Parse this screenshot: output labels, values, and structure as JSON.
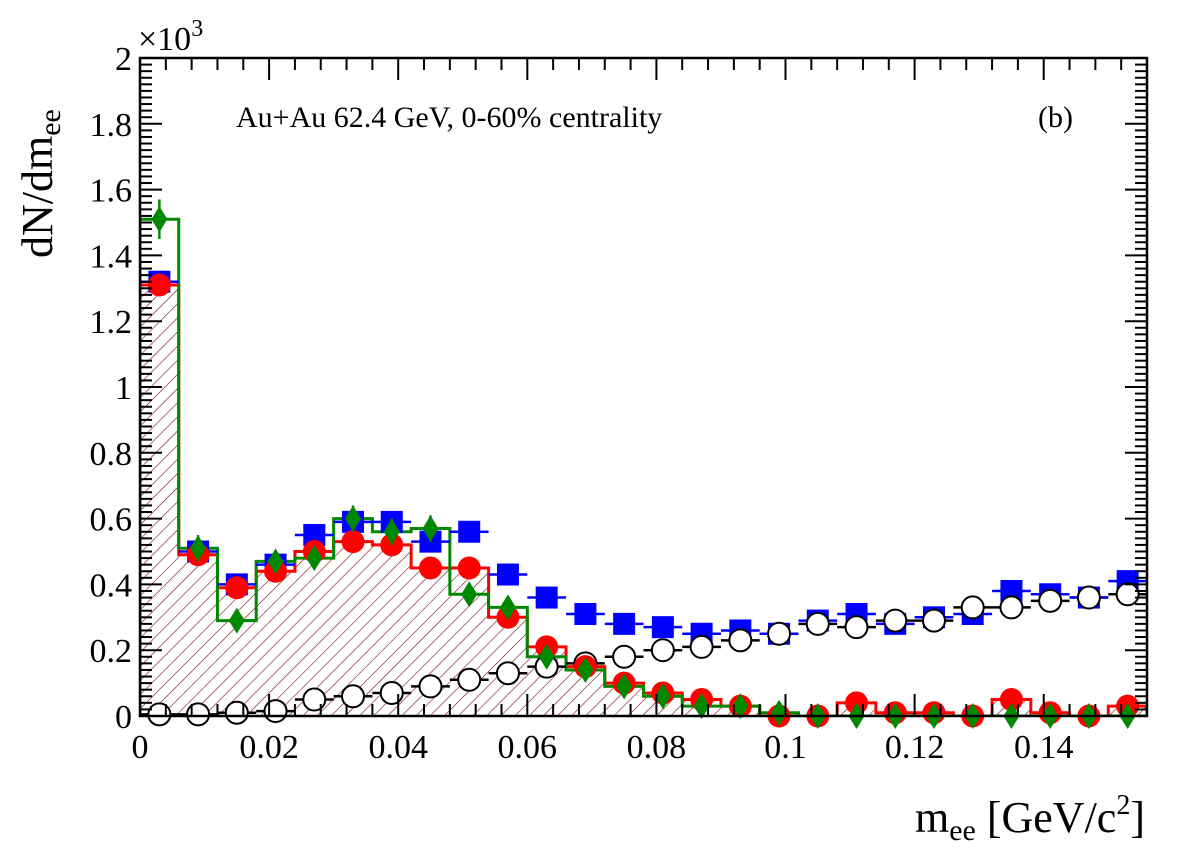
{
  "chart_data": {
    "type": "scatter",
    "annotation": "Au+Au 62.4 GeV, 0-60% centrality",
    "panel_label": "(b)",
    "ylabel": "dN/dm",
    "ylabel_sub": "ee",
    "xlabel": "m",
    "xlabel_sub": "ee",
    "xlabel_unit": " [GeV/c",
    "xlabel_unit_sup": "2",
    "xlabel_unit_end": "]",
    "multiplier_base": "×10",
    "multiplier_exp": "3",
    "xlim": [
      0,
      0.156
    ],
    "ylim": [
      0,
      2
    ],
    "x_ticks": [
      "0",
      "0.02",
      "0.04",
      "0.06",
      "0.08",
      "0.1",
      "0.12",
      "0.14"
    ],
    "x_tick_values": [
      0,
      0.02,
      0.04,
      0.06,
      0.08,
      0.1,
      0.12,
      0.14
    ],
    "y_ticks": [
      "0",
      "0.2",
      "0.4",
      "0.6",
      "0.8",
      "1",
      "1.2",
      "1.4",
      "1.6",
      "1.8",
      "2"
    ],
    "y_tick_values": [
      0,
      0.2,
      0.4,
      0.6,
      0.8,
      1.0,
      1.2,
      1.4,
      1.6,
      1.8,
      2.0
    ],
    "bin_edges": [
      0,
      0.006,
      0.012,
      0.018,
      0.024,
      0.03,
      0.036,
      0.042,
      0.048,
      0.054,
      0.06,
      0.066,
      0.072,
      0.078,
      0.084,
      0.09,
      0.096,
      0.102,
      0.108,
      0.114,
      0.12,
      0.126,
      0.132,
      0.138,
      0.144,
      0.15,
      0.156
    ],
    "x": [
      0.003,
      0.009,
      0.015,
      0.021,
      0.027,
      0.033,
      0.039,
      0.045,
      0.051,
      0.057,
      0.063,
      0.069,
      0.075,
      0.081,
      0.087,
      0.093,
      0.099,
      0.105,
      0.111,
      0.117,
      0.123,
      0.129,
      0.135,
      0.141,
      0.147,
      0.153
    ],
    "series": [
      {
        "marker": "square",
        "color": "#0000ff",
        "values": [
          1.32,
          0.5,
          0.4,
          0.46,
          0.55,
          0.59,
          0.59,
          0.53,
          0.56,
          0.43,
          0.36,
          0.31,
          0.28,
          0.27,
          0.25,
          0.26,
          0.25,
          0.29,
          0.31,
          0.28,
          0.3,
          0.31,
          0.38,
          0.37,
          0.36,
          0.41
        ]
      },
      {
        "marker": "circle",
        "color": "#ff0000",
        "style": "hatched-histogram",
        "values": [
          1.31,
          0.49,
          0.39,
          0.44,
          0.5,
          0.53,
          0.52,
          0.45,
          0.45,
          0.3,
          0.21,
          0.15,
          0.1,
          0.07,
          0.05,
          0.03,
          0.0,
          0.0,
          0.04,
          0.01,
          0.01,
          0.0,
          0.05,
          0.01,
          0.0,
          0.03
        ]
      },
      {
        "marker": "diamond",
        "color": "#008800",
        "style": "histogram",
        "values": [
          1.51,
          0.51,
          0.29,
          0.47,
          0.48,
          0.6,
          0.56,
          0.57,
          0.37,
          0.33,
          0.18,
          0.14,
          0.09,
          0.06,
          0.03,
          0.03,
          0.01,
          0.0,
          0.0,
          0.0,
          0.0,
          0.0,
          0.0,
          0.0,
          0.0,
          0.0
        ],
        "errors": [
          0.06,
          0.04,
          0.03,
          0.03,
          0.03,
          0.04,
          0.04,
          0.04,
          0.03,
          0.03,
          0.02,
          0.02,
          0.02,
          0.02,
          0.01,
          0.01,
          0.01,
          0.01,
          0.01,
          0.01,
          0.01,
          0.01,
          0.01,
          0.01,
          0.01,
          0.01
        ]
      },
      {
        "marker": "open-circle",
        "color": "#000000",
        "values": [
          0.005,
          0.005,
          0.01,
          0.015,
          0.05,
          0.06,
          0.07,
          0.09,
          0.11,
          0.13,
          0.15,
          0.16,
          0.18,
          0.2,
          0.21,
          0.23,
          0.25,
          0.28,
          0.27,
          0.29,
          0.29,
          0.33,
          0.33,
          0.35,
          0.36,
          0.37
        ]
      }
    ]
  }
}
